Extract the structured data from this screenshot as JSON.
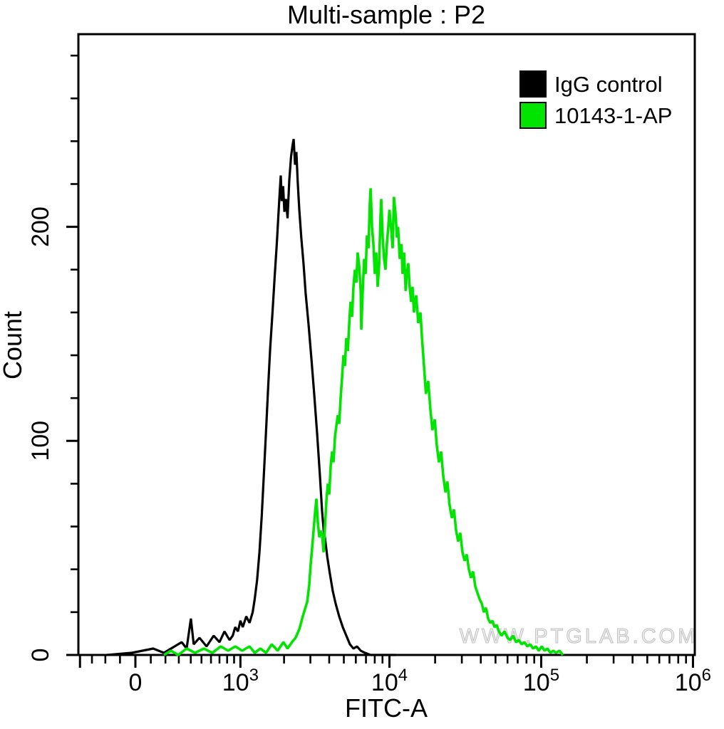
{
  "watermark": {
    "text": "WWW.PTGLAB.COM"
  },
  "chart_data": {
    "type": "line",
    "title": "Multi-sample : P2",
    "xlabel": "FITC-A",
    "ylabel": "Count",
    "legend_position": "top-right",
    "grid": false,
    "x_axis": {
      "label": "FITC-A",
      "scale": "biexponential",
      "major_ticks": [
        {
          "value": -400,
          "label": ""
        },
        {
          "value": 0,
          "label": "0"
        },
        {
          "value": 1000,
          "base": "10",
          "exp": "3"
        },
        {
          "value": 10000,
          "base": "10",
          "exp": "4"
        },
        {
          "value": 100000,
          "base": "10",
          "exp": "5"
        },
        {
          "value": 1000000,
          "base": "10",
          "exp": "6"
        }
      ],
      "minor_ticks": [
        -300,
        -200,
        -100,
        100,
        200,
        300,
        400,
        500,
        600,
        700,
        800,
        900,
        2000,
        3000,
        4000,
        5000,
        6000,
        7000,
        8000,
        9000,
        20000,
        30000,
        40000,
        50000,
        60000,
        70000,
        80000,
        90000,
        200000,
        300000,
        400000,
        500000,
        600000,
        700000,
        800000,
        900000
      ]
    },
    "y_axis": {
      "label": "Count",
      "max": 290,
      "major_ticks": [
        {
          "value": 0,
          "label": "0"
        },
        {
          "value": 100,
          "label": "100"
        },
        {
          "value": 200,
          "label": "200"
        }
      ],
      "minor_ticks": [
        20,
        40,
        60,
        80,
        120,
        140,
        160,
        180,
        220,
        240,
        260,
        280
      ]
    },
    "series": [
      {
        "name": "IgG control",
        "color": "#000000",
        "peak": {
          "x": 2320,
          "count": 241
        },
        "points": [
          [
            -189,
            0
          ],
          [
            -23,
            1
          ],
          [
            46,
            2
          ],
          [
            116,
            3
          ],
          [
            189,
            1
          ],
          [
            267,
            4
          ],
          [
            323,
            6
          ],
          [
            364,
            3
          ],
          [
            401,
            17
          ],
          [
            426,
            5
          ],
          [
            480,
            8
          ],
          [
            552,
            4
          ],
          [
            631,
            9
          ],
          [
            700,
            6
          ],
          [
            764,
            11
          ],
          [
            833,
            7
          ],
          [
            880,
            9
          ],
          [
            918,
            13
          ],
          [
            960,
            11
          ],
          [
            1000,
            16
          ],
          [
            1040,
            13
          ],
          [
            1100,
            18
          ],
          [
            1160,
            15
          ],
          [
            1220,
            20
          ],
          [
            1260,
            26
          ],
          [
            1310,
            35
          ],
          [
            1360,
            48
          ],
          [
            1410,
            65
          ],
          [
            1460,
            85
          ],
          [
            1510,
            105
          ],
          [
            1560,
            125
          ],
          [
            1610,
            143
          ],
          [
            1670,
            160
          ],
          [
            1730,
            177
          ],
          [
            1790,
            193
          ],
          [
            1830,
            205
          ],
          [
            1870,
            216
          ],
          [
            1900,
            224
          ],
          [
            1930,
            212
          ],
          [
            1970,
            219
          ],
          [
            2010,
            207
          ],
          [
            2060,
            213
          ],
          [
            2110,
            204
          ],
          [
            2170,
            222
          ],
          [
            2230,
            233
          ],
          [
            2280,
            238
          ],
          [
            2320,
            241
          ],
          [
            2370,
            229
          ],
          [
            2420,
            235
          ],
          [
            2470,
            221
          ],
          [
            2530,
            208
          ],
          [
            2610,
            195
          ],
          [
            2700,
            183
          ],
          [
            2790,
            169
          ],
          [
            2920,
            154
          ],
          [
            3050,
            138
          ],
          [
            3180,
            122
          ],
          [
            3330,
            103
          ],
          [
            3470,
            84
          ],
          [
            3590,
            67
          ],
          [
            3680,
            58
          ],
          [
            3760,
            54
          ],
          [
            3880,
            46
          ],
          [
            4040,
            38
          ],
          [
            4220,
            30
          ],
          [
            4410,
            24
          ],
          [
            4660,
            18
          ],
          [
            4920,
            13
          ],
          [
            5190,
            9
          ],
          [
            5480,
            5
          ],
          [
            5790,
            3
          ],
          [
            6110,
            4
          ],
          [
            6460,
            2
          ],
          [
            6890,
            1
          ],
          [
            7510,
            0
          ],
          [
            11000,
            0
          ]
        ]
      },
      {
        "name": "10143-1-AP",
        "color": "#00e400",
        "peak": {
          "x": 7510,
          "count": 218
        },
        "points": [
          [
            189,
            0
          ],
          [
            240,
            2
          ],
          [
            295,
            0
          ],
          [
            364,
            3
          ],
          [
            439,
            1
          ],
          [
            523,
            3
          ],
          [
            615,
            1
          ],
          [
            717,
            4
          ],
          [
            813,
            2
          ],
          [
            918,
            4
          ],
          [
            1030,
            2
          ],
          [
            1160,
            4
          ],
          [
            1260,
            1
          ],
          [
            1380,
            3
          ],
          [
            1510,
            1
          ],
          [
            1650,
            5
          ],
          [
            1810,
            2
          ],
          [
            1980,
            6
          ],
          [
            2110,
            3
          ],
          [
            2260,
            6
          ],
          [
            2390,
            8
          ],
          [
            2530,
            12
          ],
          [
            2670,
            18
          ],
          [
            2860,
            25
          ],
          [
            2950,
            33
          ],
          [
            3010,
            42
          ],
          [
            3080,
            50
          ],
          [
            3150,
            58
          ],
          [
            3220,
            66
          ],
          [
            3290,
            73
          ],
          [
            3360,
            62
          ],
          [
            3440,
            55
          ],
          [
            3510,
            58
          ],
          [
            3590,
            56
          ],
          [
            3670,
            48
          ],
          [
            3750,
            60
          ],
          [
            3830,
            72
          ],
          [
            3920,
            80
          ],
          [
            4000,
            75
          ],
          [
            4090,
            88
          ],
          [
            4180,
            95
          ],
          [
            4270,
            90
          ],
          [
            4370,
            102
          ],
          [
            4460,
            107
          ],
          [
            4560,
            112
          ],
          [
            4660,
            108
          ],
          [
            4760,
            120
          ],
          [
            4870,
            130
          ],
          [
            4970,
            140
          ],
          [
            5080,
            135
          ],
          [
            5190,
            148
          ],
          [
            5310,
            142
          ],
          [
            5430,
            155
          ],
          [
            5540,
            165
          ],
          [
            5660,
            158
          ],
          [
            5790,
            172
          ],
          [
            5920,
            180
          ],
          [
            6050,
            174
          ],
          [
            6170,
            188
          ],
          [
            6310,
            182
          ],
          [
            6460,
            170
          ],
          [
            6520,
            152
          ],
          [
            6660,
            170
          ],
          [
            6810,
            185
          ],
          [
            6960,
            178
          ],
          [
            7110,
            196
          ],
          [
            7270,
            190
          ],
          [
            7420,
            210
          ],
          [
            7510,
            218
          ],
          [
            7670,
            200
          ],
          [
            7840,
            192
          ],
          [
            8010,
            178
          ],
          [
            8180,
            188
          ],
          [
            8360,
            172
          ],
          [
            8550,
            182
          ],
          [
            8730,
            205
          ],
          [
            8830,
            213
          ],
          [
            9020,
            195
          ],
          [
            9220,
            185
          ],
          [
            9420,
            180
          ],
          [
            9620,
            192
          ],
          [
            9830,
            200
          ],
          [
            10000,
            208
          ],
          [
            10300,
            198
          ],
          [
            10500,
            190
          ],
          [
            10700,
            214
          ],
          [
            11000,
            205
          ],
          [
            11200,
            195
          ],
          [
            11400,
            200
          ],
          [
            11700,
            185
          ],
          [
            12000,
            192
          ],
          [
            12200,
            178
          ],
          [
            12500,
            188
          ],
          [
            12800,
            170
          ],
          [
            13000,
            178
          ],
          [
            13300,
            183
          ],
          [
            13600,
            172
          ],
          [
            13900,
            165
          ],
          [
            14200,
            172
          ],
          [
            14500,
            160
          ],
          [
            15000,
            168
          ],
          [
            15500,
            155
          ],
          [
            16000,
            160
          ],
          [
            16400,
            148
          ],
          [
            16900,
            135
          ],
          [
            17400,
            122
          ],
          [
            18000,
            128
          ],
          [
            18600,
            115
          ],
          [
            19200,
            105
          ],
          [
            19900,
            110
          ],
          [
            20500,
            98
          ],
          [
            21200,
            90
          ],
          [
            21900,
            95
          ],
          [
            22600,
            84
          ],
          [
            23400,
            76
          ],
          [
            24100,
            81
          ],
          [
            24900,
            70
          ],
          [
            25800,
            64
          ],
          [
            26600,
            68
          ],
          [
            27500,
            58
          ],
          [
            28400,
            53
          ],
          [
            29300,
            57
          ],
          [
            30300,
            48
          ],
          [
            31300,
            44
          ],
          [
            32300,
            47
          ],
          [
            33400,
            40
          ],
          [
            34500,
            36
          ],
          [
            35600,
            39
          ],
          [
            36800,
            32
          ],
          [
            38000,
            29
          ],
          [
            39300,
            26
          ],
          [
            40600,
            24
          ],
          [
            41900,
            20
          ],
          [
            43300,
            22
          ],
          [
            44700,
            17
          ],
          [
            46200,
            15
          ],
          [
            47700,
            16
          ],
          [
            49300,
            13
          ],
          [
            50900,
            14
          ],
          [
            52600,
            11
          ],
          [
            54900,
            9
          ],
          [
            57300,
            11
          ],
          [
            59900,
            8
          ],
          [
            62500,
            7
          ],
          [
            65300,
            9
          ],
          [
            68200,
            6
          ],
          [
            71200,
            7
          ],
          [
            74300,
            5
          ],
          [
            77600,
            6
          ],
          [
            81000,
            4
          ],
          [
            84600,
            5
          ],
          [
            88400,
            3
          ],
          [
            92300,
            4
          ],
          [
            96300,
            2
          ],
          [
            101000,
            4
          ],
          [
            105000,
            2
          ],
          [
            110000,
            3
          ],
          [
            115000,
            1
          ],
          [
            120000,
            2
          ],
          [
            125000,
            1
          ],
          [
            132000,
            2
          ],
          [
            139000,
            0
          ]
        ]
      }
    ]
  }
}
